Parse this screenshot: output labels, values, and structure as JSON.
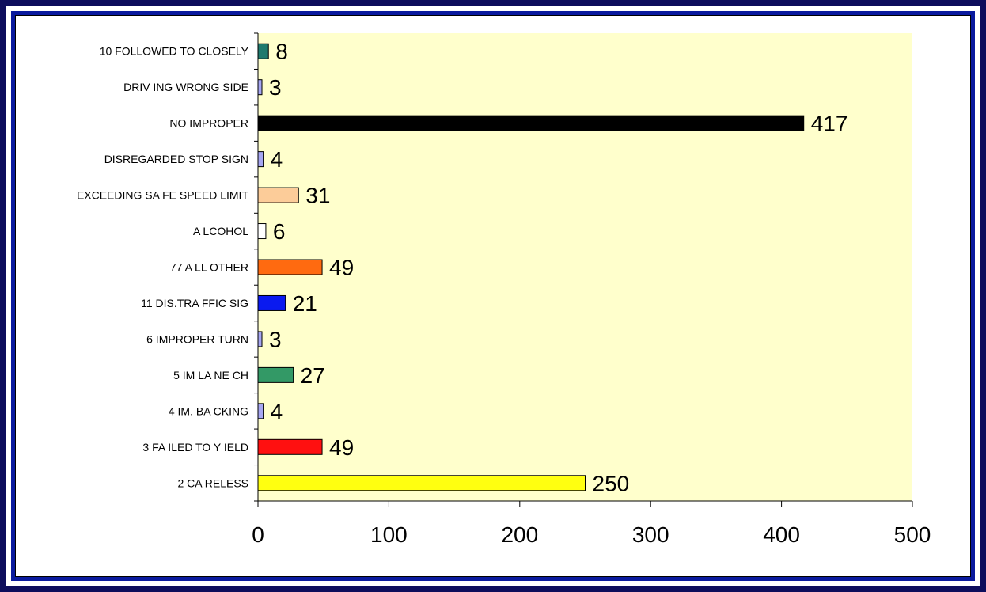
{
  "chart_data": {
    "type": "bar",
    "orientation": "horizontal",
    "categories": [
      "10 FOLLOWED TO CLOSELY",
      "DRIV ING WRONG SIDE",
      "NO IMPROPER",
      "DISREGARDED STOP SIGN",
      "EXCEEDING SA FE SPEED LIMIT",
      "A LCOHOL",
      "77 A LL OTHER",
      "11 DIS.TRA FFIC SIG",
      "6 IMPROPER TURN",
      "5 IM LA NE CH",
      "4 IM. BA CKING",
      "3 FA ILED TO Y IELD",
      "2 CA RELESS"
    ],
    "values": [
      8,
      3,
      417,
      4,
      31,
      6,
      49,
      21,
      3,
      27,
      4,
      49,
      250
    ],
    "value_labels": [
      "8",
      "3",
      "417",
      "4",
      "31",
      "6",
      "49",
      "21",
      "3",
      "27",
      "4",
      "49",
      "250"
    ],
    "colors": [
      "#1f7a6e",
      "#a6a6f2",
      "#000000",
      "#a6a6f2",
      "#fccc99",
      "#ffffff",
      "#ff6a10",
      "#0a1af0",
      "#a6a6f2",
      "#339966",
      "#a6a6f2",
      "#ff1010",
      "#ffff10"
    ],
    "xlim": [
      0,
      500
    ],
    "xticks": [
      0,
      100,
      200,
      300,
      400,
      500
    ],
    "xtick_labels": [
      "0",
      "100",
      "200",
      "300",
      "400",
      "500"
    ],
    "plot_background": "#ffffcc",
    "frame_colors": {
      "outer": "#0d0d5c",
      "inner": "#0a1a9e"
    },
    "grid": false,
    "legend": "none",
    "title": "",
    "xlabel": "",
    "ylabel": ""
  }
}
